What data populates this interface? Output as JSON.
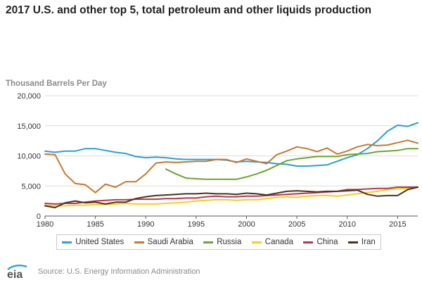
{
  "title": "2017 U.S. and other top 5, total petroleum and other liquids production",
  "source": "Source: U.S. Energy Information Administration",
  "logo_text": "eia",
  "colors": {
    "United States": "#2a9fd8",
    "Saudi Arabia": "#c9782b",
    "Russia": "#6aa72e",
    "Canada": "#f5cf1a",
    "China": "#b8364b",
    "Iran": "#4a3320"
  },
  "chart_data": {
    "type": "line",
    "title": "2017 U.S. and other top 5, total petroleum and other liquids production",
    "ylabel": "Thousand Barrels Per Day",
    "xlabel": "",
    "xlim": [
      1980,
      2017
    ],
    "ylim": [
      0,
      20000
    ],
    "xticks": [
      "1980",
      "1985",
      "1990",
      "1995",
      "2000",
      "2005",
      "2010",
      "2015"
    ],
    "yticks": [
      "0",
      "5,000",
      "10,000",
      "15,000",
      "20,000"
    ],
    "grid": true,
    "legend_position": "bottom",
    "series": [
      {
        "name": "United States",
        "start": 1980,
        "values": [
          10800,
          10600,
          10800,
          10800,
          11200,
          11200,
          10900,
          10600,
          10400,
          9900,
          9700,
          9800,
          9700,
          9500,
          9400,
          9400,
          9400,
          9400,
          9300,
          9000,
          9100,
          9000,
          8900,
          8700,
          8600,
          8300,
          8300,
          8400,
          8500,
          9100,
          9700,
          10200,
          11200,
          12500,
          14100,
          15100,
          14900,
          15500
        ]
      },
      {
        "name": "Saudi Arabia",
        "start": 1980,
        "values": [
          10300,
          10200,
          7000,
          5400,
          5200,
          3900,
          5300,
          4800,
          5700,
          5700,
          7000,
          8800,
          9000,
          8900,
          9000,
          9100,
          9100,
          9400,
          9400,
          8900,
          9500,
          9100,
          8700,
          10200,
          10800,
          11500,
          11200,
          10700,
          11300,
          10300,
          10800,
          11500,
          11900,
          11700,
          11800,
          12200,
          12600,
          12100
        ]
      },
      {
        "name": "Russia",
        "start": 1992,
        "values": [
          7800,
          7000,
          6300,
          6200,
          6100,
          6100,
          6100,
          6100,
          6500,
          7000,
          7600,
          8400,
          9200,
          9500,
          9700,
          9900,
          9900,
          9900,
          10200,
          10300,
          10400,
          10700,
          10800,
          10900,
          11200,
          11200
        ]
      },
      {
        "name": "Canada",
        "start": 1980,
        "values": [
          1800,
          1700,
          1700,
          1800,
          1800,
          1900,
          1900,
          2000,
          2100,
          2000,
          2000,
          2000,
          2100,
          2200,
          2300,
          2500,
          2600,
          2700,
          2700,
          2600,
          2700,
          2700,
          2900,
          3100,
          3200,
          3100,
          3300,
          3400,
          3400,
          3300,
          3500,
          3700,
          3900,
          4100,
          4400,
          4500,
          4600,
          4900
        ]
      },
      {
        "name": "China",
        "start": 1980,
        "values": [
          2100,
          2000,
          2100,
          2100,
          2300,
          2500,
          2600,
          2700,
          2700,
          2800,
          2800,
          2800,
          2900,
          2900,
          3000,
          3000,
          3200,
          3300,
          3200,
          3200,
          3300,
          3300,
          3400,
          3500,
          3600,
          3700,
          3800,
          3900,
          4000,
          4100,
          4400,
          4400,
          4500,
          4600,
          4600,
          4800,
          4800,
          4800
        ]
      },
      {
        "name": "Iran",
        "start": 1980,
        "values": [
          1700,
          1400,
          2200,
          2500,
          2200,
          2300,
          2000,
          2300,
          2300,
          2900,
          3200,
          3400,
          3500,
          3600,
          3700,
          3700,
          3800,
          3700,
          3700,
          3600,
          3800,
          3700,
          3500,
          3800,
          4100,
          4200,
          4100,
          4000,
          4100,
          4100,
          4200,
          4300,
          3600,
          3300,
          3400,
          3400,
          4400,
          4800
        ]
      }
    ]
  }
}
